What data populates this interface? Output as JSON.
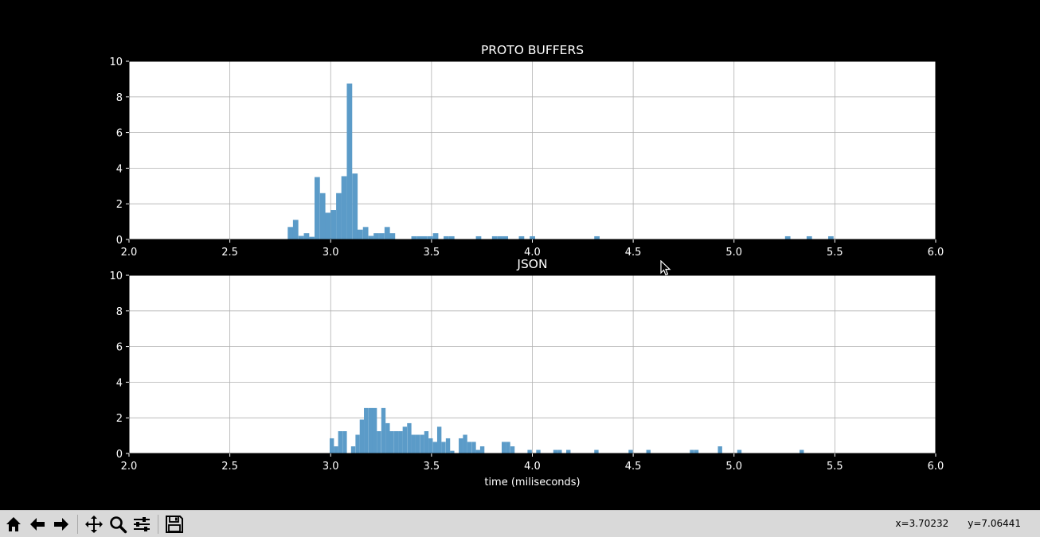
{
  "chart_data": [
    {
      "type": "bar",
      "title": "PROTO BUFFERS",
      "xlabel": "",
      "ylabel": "",
      "xlim": [
        2.0,
        6.0
      ],
      "ylim": [
        0,
        10
      ],
      "xticks": [
        "2.0",
        "2.5",
        "3.0",
        "3.5",
        "4.0",
        "4.5",
        "5.0",
        "5.5",
        "6.0"
      ],
      "yticks": [
        "0",
        "2",
        "4",
        "6",
        "8",
        "10"
      ],
      "grid": true,
      "bin_width": 0.0267,
      "bar_color": "#5b9bc8",
      "x": [
        2.787,
        2.813,
        2.84,
        2.867,
        2.893,
        2.92,
        2.947,
        2.973,
        3.0,
        3.027,
        3.053,
        3.08,
        3.107,
        3.133,
        3.16,
        3.187,
        3.213,
        3.24,
        3.267,
        3.293,
        3.4,
        3.427,
        3.453,
        3.48,
        3.507,
        3.56,
        3.587,
        3.72,
        3.8,
        3.827,
        3.853,
        3.933,
        3.987,
        4.307,
        5.253,
        5.36,
        5.467
      ],
      "values": [
        0.7,
        1.1,
        0.2,
        0.35,
        0.15,
        3.5,
        2.6,
        1.5,
        1.65,
        2.6,
        3.55,
        8.75,
        3.7,
        0.55,
        0.7,
        0.2,
        0.35,
        0.35,
        0.7,
        0.35,
        0.18,
        0.18,
        0.18,
        0.18,
        0.35,
        0.18,
        0.18,
        0.18,
        0.18,
        0.18,
        0.18,
        0.18,
        0.18,
        0.18,
        0.18,
        0.18,
        0.18
      ]
    },
    {
      "type": "bar",
      "title": "JSON",
      "xlabel": "time (miliseconds)",
      "ylabel": "",
      "xlim": [
        2.0,
        6.0
      ],
      "ylim": [
        0,
        10
      ],
      "xticks": [
        "2.0",
        "2.5",
        "3.0",
        "3.5",
        "4.0",
        "4.5",
        "5.0",
        "5.5",
        "6.0"
      ],
      "yticks": [
        "0",
        "2",
        "4",
        "6",
        "8",
        "10"
      ],
      "grid": true,
      "bin_width": 0.0213,
      "bar_color": "#5b9bc8",
      "x": [
        2.995,
        3.016,
        3.037,
        3.059,
        3.101,
        3.123,
        3.144,
        3.165,
        3.187,
        3.208,
        3.229,
        3.251,
        3.272,
        3.293,
        3.315,
        3.336,
        3.357,
        3.379,
        3.4,
        3.421,
        3.443,
        3.464,
        3.485,
        3.507,
        3.528,
        3.549,
        3.571,
        3.592,
        3.635,
        3.656,
        3.677,
        3.699,
        3.72,
        3.741,
        3.848,
        3.869,
        3.891,
        3.976,
        4.019,
        4.104,
        4.125,
        4.168,
        4.307,
        4.477,
        4.565,
        4.781,
        4.803,
        4.92,
        5.016,
        5.325
      ],
      "values": [
        0.85,
        0.4,
        1.25,
        1.25,
        0.4,
        1.05,
        1.9,
        2.55,
        2.55,
        2.55,
        1.25,
        2.55,
        1.7,
        1.25,
        1.25,
        1.25,
        1.5,
        1.7,
        1.05,
        1.05,
        1.05,
        1.25,
        0.85,
        0.65,
        1.5,
        0.65,
        0.85,
        0.15,
        0.85,
        1.05,
        0.65,
        0.65,
        0.2,
        0.4,
        0.65,
        0.65,
        0.4,
        0.2,
        0.2,
        0.2,
        0.2,
        0.2,
        0.2,
        0.2,
        0.2,
        0.2,
        0.2,
        0.4,
        0.2,
        0.2
      ]
    }
  ],
  "toolbar": {
    "icons": [
      "home-icon",
      "back-arrow-icon",
      "forward-arrow-icon",
      "pan-icon",
      "zoom-icon",
      "subplots-icon",
      "save-icon"
    ],
    "x_readout": "x=3.70232",
    "y_readout": "y=7.06441"
  },
  "colors": {
    "figure_bg": "#000000",
    "axes_bg": "#ffffff",
    "grid": "#b0b0b0",
    "bars": "#5b9bc8",
    "text": "#ffffff",
    "toolbar_bg": "#d9d9d9"
  }
}
